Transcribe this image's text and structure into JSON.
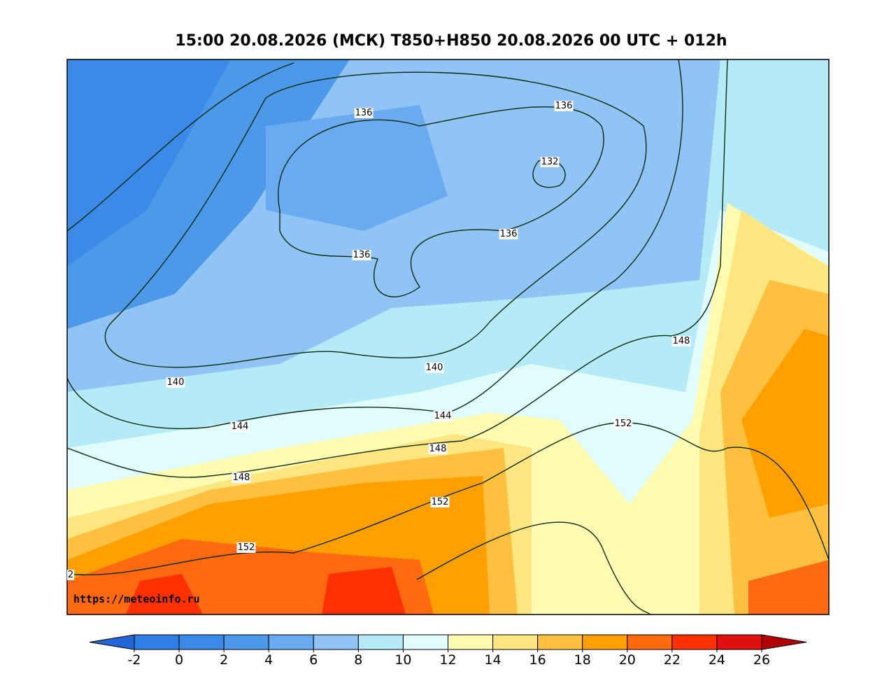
{
  "title": "15:00 20.08.2026 (МСК) T850+H850 20.08.2026 00 UTC + 012h",
  "watermark": "https://meteoinfo.ru",
  "contour_labels": [
    "136",
    "136",
    "132",
    "136",
    "136",
    "148",
    "140",
    "140",
    "144",
    "144",
    "152",
    "148",
    "148",
    "152",
    "152",
    "2"
  ],
  "colorbar": {
    "ticks": [
      -2,
      0,
      2,
      4,
      6,
      8,
      10,
      12,
      14,
      16,
      18,
      20,
      22,
      24,
      26
    ],
    "colors": [
      "#2266d8",
      "#2f7fe6",
      "#3b8ae8",
      "#4c99ea",
      "#6aaaf0",
      "#8fc4f4",
      "#b4ebf7",
      "#e0fcfc",
      "#fffbb0",
      "#ffe680",
      "#ffc040",
      "#ffa000",
      "#ff6a10",
      "#ff3000",
      "#e01010",
      "#b00000"
    ]
  }
}
